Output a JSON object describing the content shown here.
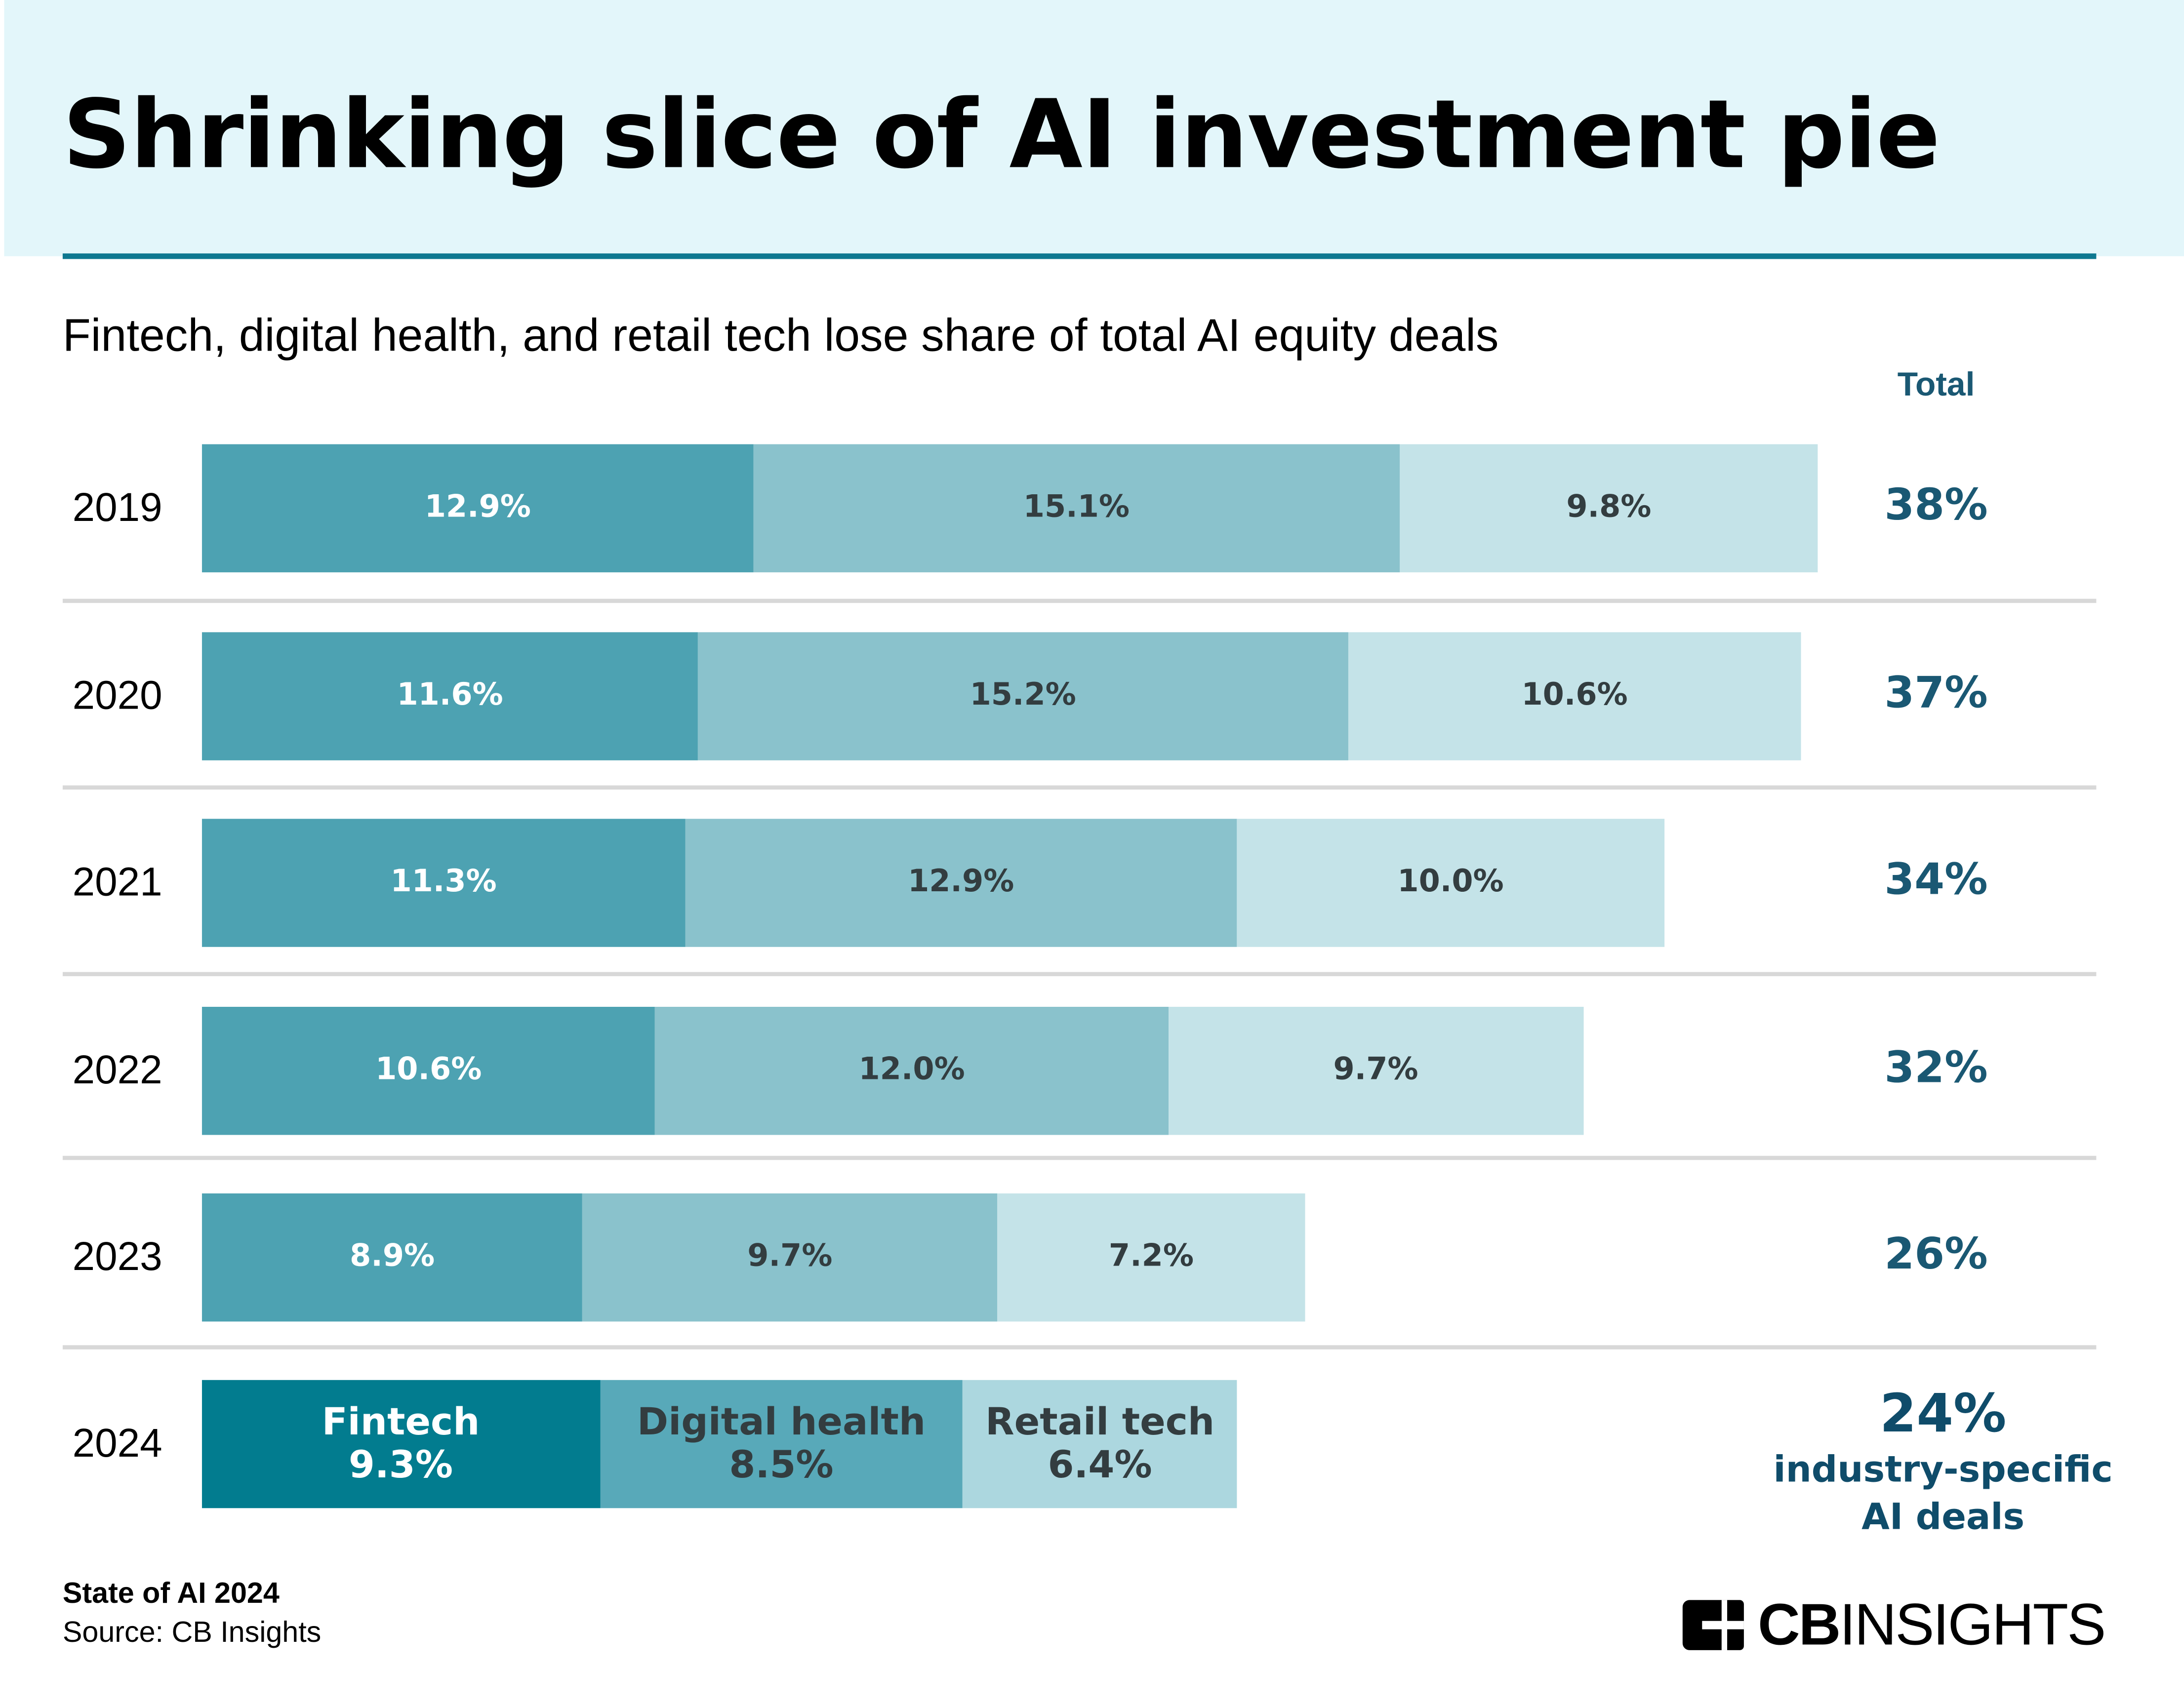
{
  "title": "Shrinking slice of AI investment pie",
  "subtitle": "Fintech, digital health, and retail tech lose share of total AI equity deals",
  "total_header": "Total",
  "footer": {
    "report": "State of AI 2024",
    "source": "Source: CB Insights"
  },
  "logo": {
    "bold": "CB",
    "light": "INSIGHTS"
  },
  "colors": {
    "header_bg": "#e3f6fa",
    "rule": "#0e7890",
    "total_text": "#1a5873",
    "fintech": "#4da2b2",
    "digital_health": "#8ac2cc",
    "retail_tech": "#c4e3e8",
    "fintech_2024": "#027c8f",
    "digital_health_2024": "#58a9b9",
    "retail_tech_2024": "#acd7df"
  },
  "chart_data": {
    "type": "bar",
    "orientation": "horizontal",
    "stacked": true,
    "categories": [
      "2019",
      "2020",
      "2021",
      "2022",
      "2023",
      "2024"
    ],
    "series": [
      {
        "name": "Fintech",
        "values": [
          12.9,
          11.6,
          11.3,
          10.6,
          8.9,
          9.3
        ]
      },
      {
        "name": "Digital health",
        "values": [
          15.1,
          15.2,
          12.9,
          12.0,
          9.7,
          8.5
        ]
      },
      {
        "name": "Retail tech",
        "values": [
          9.8,
          10.6,
          10.0,
          9.7,
          7.2,
          6.4
        ]
      }
    ],
    "data_labels": [
      [
        "12.9%",
        "15.1%",
        "9.8%"
      ],
      [
        "11.6%",
        "15.2%",
        "10.6%"
      ],
      [
        "11.3%",
        "12.9%",
        "10.0%"
      ],
      [
        "10.6%",
        "12.0%",
        "9.7%"
      ],
      [
        "8.9%",
        "9.7%",
        "7.2%"
      ],
      [
        "9.3%",
        "8.5%",
        "6.4%"
      ]
    ],
    "totals": [
      "38%",
      "37%",
      "34%",
      "32%",
      "26%",
      "24%"
    ],
    "total_note": [
      "industry-specific",
      "AI deals"
    ],
    "unit": "%",
    "grid": false
  }
}
